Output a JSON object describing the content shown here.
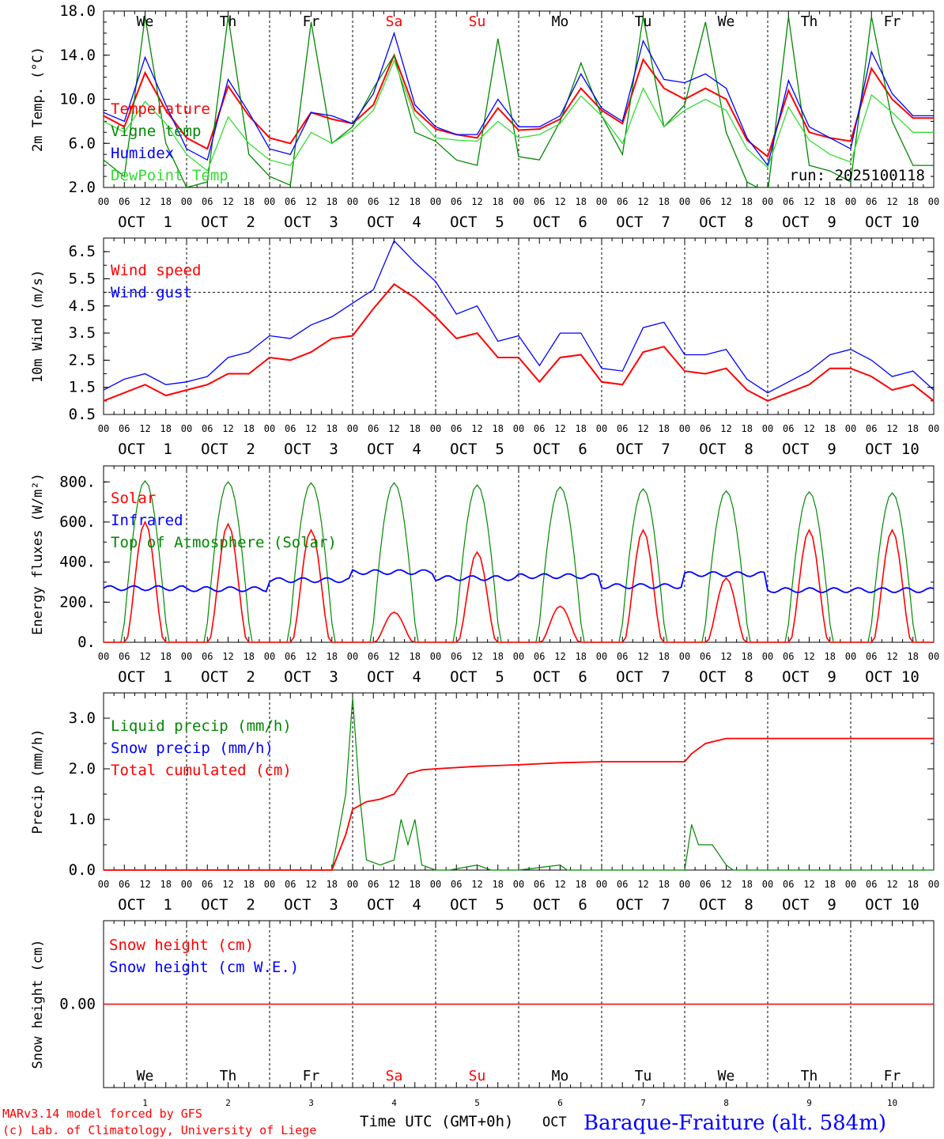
{
  "footer": {
    "credit_line1": "MARv3.14 model forced by GFS",
    "credit_line2": "(c) Lab. of Climatology, University of Liege",
    "time_axis_label": "Time UTC (GMT+0h)",
    "month": "OCT",
    "station": "Baraque-Fraiture (alt. 584m)"
  },
  "colors": {
    "red": "#ff0000",
    "green": "#008800",
    "blue": "#0000ff",
    "lightgreen": "#33dd33",
    "weekend": "#ff0000",
    "axis": "#000000"
  },
  "time_axis": {
    "hour_ticks": [
      "00",
      "06",
      "12",
      "18"
    ],
    "date_labels": [
      "OCT  1",
      "OCT  2",
      "OCT  3",
      "OCT  4",
      "OCT  5",
      "OCT  6",
      "OCT  7",
      "OCT  8",
      "OCT  9",
      "OCT 10"
    ],
    "day_names": [
      "We",
      "Th",
      "Fr",
      "Sa",
      "Su",
      "Mo",
      "Tu",
      "We",
      "Th",
      "Fr"
    ],
    "weekend_days": [
      3,
      4
    ],
    "day_numbers": [
      "1",
      "2",
      "3",
      "4",
      "5",
      "6",
      "7",
      "8",
      "9",
      "10"
    ]
  },
  "chart_data": [
    {
      "type": "line",
      "ylabel": "2m Temp. (°C)",
      "ylim": [
        2.0,
        18.0
      ],
      "yticks": [
        "2.0",
        "6.0",
        "10.0",
        "14.0",
        "18.0"
      ],
      "run_label": "run: 2025100118",
      "legend": [
        {
          "name": "Temperature",
          "color": "#ff0000"
        },
        {
          "name": "Vigne temp",
          "color": "#008800"
        },
        {
          "name": "Humidex",
          "color": "#0000ff"
        },
        {
          "name": "DewPoint Temp",
          "color": "#33dd33"
        }
      ],
      "x_hours": [
        0,
        6,
        12,
        18,
        24,
        30,
        36,
        42,
        48,
        54,
        60,
        66,
        72,
        78,
        84,
        90,
        96,
        102,
        108,
        114,
        120,
        126,
        132,
        138,
        144,
        150,
        156,
        162,
        168,
        174,
        180,
        186,
        192,
        198,
        204,
        210,
        216,
        222,
        228,
        234,
        240
      ],
      "series": [
        {
          "name": "Temperature",
          "color": "#ff0000",
          "values": [
            8.5,
            7.5,
            12.4,
            9.0,
            6.5,
            5.5,
            11.2,
            8.5,
            6.5,
            6.0,
            8.8,
            8.2,
            7.8,
            9.5,
            14.0,
            9.0,
            7.3,
            6.8,
            6.5,
            9.2,
            7.2,
            7.3,
            8.2,
            11.0,
            9.0,
            7.8,
            13.6,
            11.0,
            10.0,
            11.0,
            10.0,
            6.3,
            4.8,
            10.8,
            7.0,
            6.5,
            6.2,
            12.8,
            10.0,
            8.3,
            8.3
          ]
        },
        {
          "name": "Vigne temp",
          "color": "#008800",
          "values": [
            4.5,
            3.0,
            17.5,
            6.0,
            2.0,
            2.5,
            17.5,
            5.0,
            3.0,
            2.2,
            17.0,
            6.0,
            7.5,
            11.0,
            14.0,
            7.0,
            6.2,
            4.5,
            4.0,
            15.5,
            4.8,
            4.5,
            8.0,
            13.3,
            8.5,
            5.0,
            17.5,
            7.5,
            9.5,
            17.0,
            7.0,
            2.5,
            1.5,
            17.5,
            4.0,
            3.5,
            2.5,
            17.5,
            8.0,
            4.0,
            4.0
          ]
        },
        {
          "name": "Humidex",
          "color": "#0000ff",
          "values": [
            8.8,
            8.0,
            13.8,
            9.5,
            5.5,
            4.5,
            11.8,
            8.8,
            5.5,
            5.0,
            8.8,
            8.5,
            7.8,
            10.5,
            16.0,
            9.5,
            7.5,
            6.8,
            6.8,
            10.0,
            7.5,
            7.5,
            8.5,
            12.3,
            9.2,
            8.0,
            15.3,
            11.8,
            11.5,
            12.3,
            11.0,
            6.5,
            4.0,
            11.7,
            7.5,
            6.5,
            5.5,
            14.3,
            10.5,
            8.5,
            8.5
          ]
        },
        {
          "name": "DewPoint Temp",
          "color": "#33dd33",
          "values": [
            8.0,
            7.0,
            9.8,
            7.8,
            5.0,
            3.5,
            8.4,
            6.0,
            4.5,
            4.0,
            7.0,
            6.0,
            7.2,
            9.0,
            13.5,
            8.5,
            6.5,
            6.3,
            6.2,
            8.0,
            6.5,
            6.8,
            7.8,
            10.3,
            8.5,
            6.0,
            11.0,
            7.5,
            9.0,
            10.0,
            9.0,
            5.5,
            3.8,
            9.3,
            6.3,
            5.0,
            4.3,
            10.4,
            8.8,
            7.0,
            7.0
          ]
        }
      ]
    },
    {
      "type": "line",
      "ylabel": "10m Wind (m/s)",
      "ylim": [
        0.5,
        7.0
      ],
      "yticks": [
        "0.5",
        "1.5",
        "2.5",
        "3.5",
        "4.5",
        "5.5",
        "6.5"
      ],
      "ref_line": 5.0,
      "legend": [
        {
          "name": "Wind speed",
          "color": "#ff0000"
        },
        {
          "name": "Wind gust",
          "color": "#0000ff"
        }
      ],
      "x_hours": [
        0,
        6,
        12,
        18,
        24,
        30,
        36,
        42,
        48,
        54,
        60,
        66,
        72,
        78,
        84,
        90,
        96,
        102,
        108,
        114,
        120,
        126,
        132,
        138,
        144,
        150,
        156,
        162,
        168,
        174,
        180,
        186,
        192,
        198,
        204,
        210,
        216,
        222,
        228,
        234,
        240
      ],
      "series": [
        {
          "name": "Wind speed",
          "color": "#ff0000",
          "values": [
            1.0,
            1.3,
            1.6,
            1.2,
            1.4,
            1.6,
            2.0,
            2.0,
            2.6,
            2.5,
            2.8,
            3.3,
            3.4,
            4.4,
            5.3,
            4.8,
            4.1,
            3.3,
            3.5,
            2.6,
            2.6,
            1.7,
            2.6,
            2.7,
            1.7,
            1.6,
            2.8,
            3.0,
            2.1,
            2.0,
            2.2,
            1.4,
            1.0,
            1.3,
            1.6,
            2.2,
            2.2,
            1.9,
            1.4,
            1.6,
            1.0
          ]
        },
        {
          "name": "Wind gust",
          "color": "#0000ff",
          "values": [
            1.4,
            1.8,
            2.0,
            1.6,
            1.7,
            1.9,
            2.6,
            2.8,
            3.4,
            3.3,
            3.8,
            4.1,
            4.6,
            5.1,
            6.9,
            6.1,
            5.4,
            4.2,
            4.5,
            3.2,
            3.4,
            2.3,
            3.5,
            3.5,
            2.2,
            2.1,
            3.7,
            3.9,
            2.7,
            2.7,
            2.9,
            1.8,
            1.3,
            1.7,
            2.1,
            2.7,
            2.9,
            2.5,
            1.9,
            2.1,
            1.4
          ]
        }
      ]
    },
    {
      "type": "line",
      "ylabel": "Energy fluxes (W/m²)",
      "ylim": [
        0,
        880
      ],
      "yticks": [
        "0.",
        "200.",
        "400.",
        "600.",
        "800."
      ],
      "legend": [
        {
          "name": "Solar",
          "color": "#ff0000"
        },
        {
          "name": "Infrared",
          "color": "#0000ff"
        },
        {
          "name": "Top of Atmosphere (Solar)",
          "color": "#008800"
        }
      ],
      "daily_peaks": {
        "toa": [
          805,
          800,
          795,
          795,
          785,
          775,
          765,
          755,
          750,
          745
        ],
        "solar": [
          600,
          590,
          560,
          150,
          450,
          180,
          560,
          320,
          560,
          560
        ],
        "infrared_mean": [
          270,
          265,
          310,
          350,
          320,
          330,
          280,
          340,
          260,
          260
        ]
      }
    },
    {
      "type": "line",
      "ylabel": "Precip (mm/h)",
      "ylim": [
        0.0,
        3.5
      ],
      "yticks": [
        "0.0",
        "1.0",
        "2.0",
        "3.0"
      ],
      "legend": [
        {
          "name": "Liquid precip (mm/h)",
          "color": "#008800"
        },
        {
          "name": "Snow precip (mm/h)",
          "color": "#0000ff"
        },
        {
          "name": "Total cumulated (cm)",
          "color": "#ff0000"
        }
      ],
      "liquid": {
        "x_hours": [
          0,
          66,
          70,
          72,
          74,
          76,
          80,
          84,
          86,
          88,
          90,
          92,
          94,
          96,
          100,
          108,
          112,
          118,
          120,
          132,
          134,
          138,
          144,
          168,
          170,
          172,
          176,
          180,
          182,
          186,
          240
        ],
        "values": [
          0,
          0,
          1.5,
          3.4,
          1.5,
          0.2,
          0.1,
          0.2,
          1.0,
          0.5,
          1.0,
          0.1,
          0.05,
          0.0,
          0.0,
          0.1,
          0.0,
          0.0,
          0.0,
          0.1,
          0.0,
          0.0,
          0.0,
          0.0,
          0.9,
          0.5,
          0.5,
          0.1,
          0.0,
          0.0,
          0.0
        ]
      },
      "cumulated": {
        "x_hours": [
          0,
          66,
          70,
          72,
          76,
          80,
          84,
          86,
          88,
          92,
          96,
          108,
          120,
          132,
          144,
          168,
          170,
          174,
          180,
          186,
          240
        ],
        "values": [
          0,
          0,
          0.7,
          1.2,
          1.35,
          1.4,
          1.5,
          1.7,
          1.9,
          1.98,
          2.0,
          2.05,
          2.08,
          2.12,
          2.14,
          2.14,
          2.3,
          2.5,
          2.6,
          2.6,
          2.6
        ]
      }
    },
    {
      "type": "line",
      "ylabel": "Snow height (cm)",
      "ylim": [
        -1,
        1
      ],
      "yticks": [
        "0.00"
      ],
      "legend": [
        {
          "name": "Snow height (cm)",
          "color": "#ff0000"
        },
        {
          "name": "Snow height (cm W.E.)",
          "color": "#0000ff"
        }
      ],
      "value": 0.0
    }
  ]
}
